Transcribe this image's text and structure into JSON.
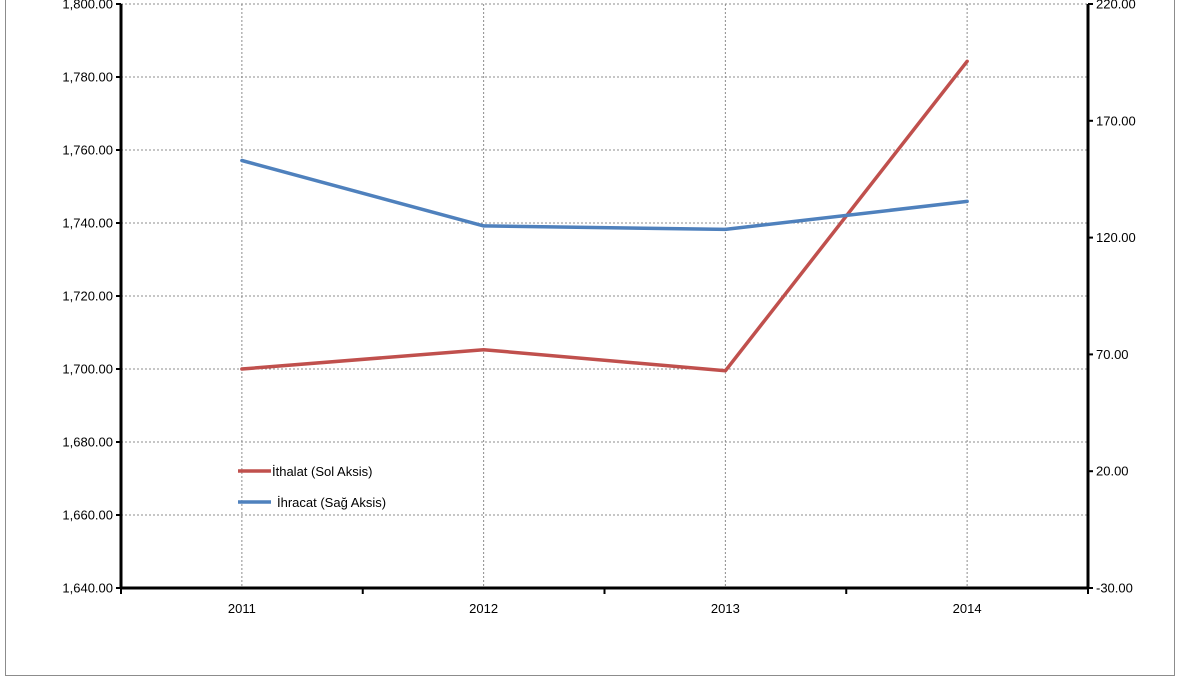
{
  "chart_data": {
    "type": "line",
    "categories": [
      "2011",
      "2012",
      "2013",
      "2014"
    ],
    "left_axis": {
      "ylim": [
        1640,
        1800
      ],
      "ticks": [
        "1,640.00",
        "1,660.00",
        "1,680.00",
        "1,700.00",
        "1,720.00",
        "1,740.00",
        "1,760.00",
        "1,780.00",
        "1,800.00"
      ]
    },
    "right_axis": {
      "ylim": [
        -30,
        220
      ],
      "ticks": [
        "-30.00",
        "20.00",
        "70.00",
        "120.00",
        "170.00",
        "220.00"
      ]
    },
    "series": [
      {
        "name": "İthalat (Sol Aksis)",
        "axis": "left",
        "color": "#c0504d",
        "values": [
          1700,
          1705.3,
          1699.5,
          1784.3
        ]
      },
      {
        "name": "İhracat (Sağ Aksis)",
        "axis": "right",
        "color": "#4f81bd",
        "values": [
          153,
          125,
          123.5,
          135.5
        ]
      }
    ],
    "grid": true,
    "legend_position": "bottom-left"
  }
}
